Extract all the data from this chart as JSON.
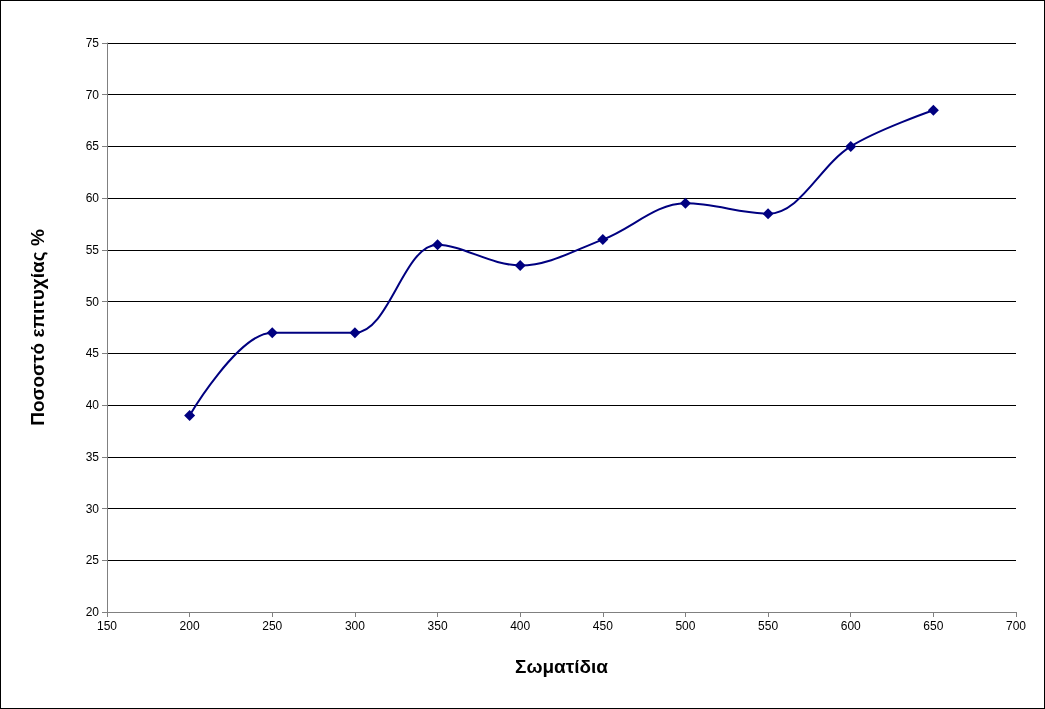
{
  "chart_data": {
    "type": "line",
    "xlabel": "Σωματίδια",
    "ylabel": "Ποσοστό επιτυχίας %",
    "x": [
      200,
      250,
      300,
      350,
      400,
      450,
      500,
      550,
      600,
      650
    ],
    "series": [
      {
        "color": "#000080",
        "values": [
          39,
          47,
          47,
          55.5,
          53.5,
          56,
          59.5,
          58.5,
          65,
          68.5
        ]
      }
    ],
    "xlim": [
      150,
      700
    ],
    "xticks": [
      150,
      200,
      250,
      300,
      350,
      400,
      450,
      500,
      550,
      600,
      650,
      700
    ],
    "ylim": [
      20,
      75
    ],
    "yticks": [
      20,
      25,
      30,
      35,
      40,
      45,
      50,
      55,
      60,
      65,
      70,
      75
    ],
    "grid": "y",
    "marker": "diamond",
    "line_style": "solid"
  }
}
